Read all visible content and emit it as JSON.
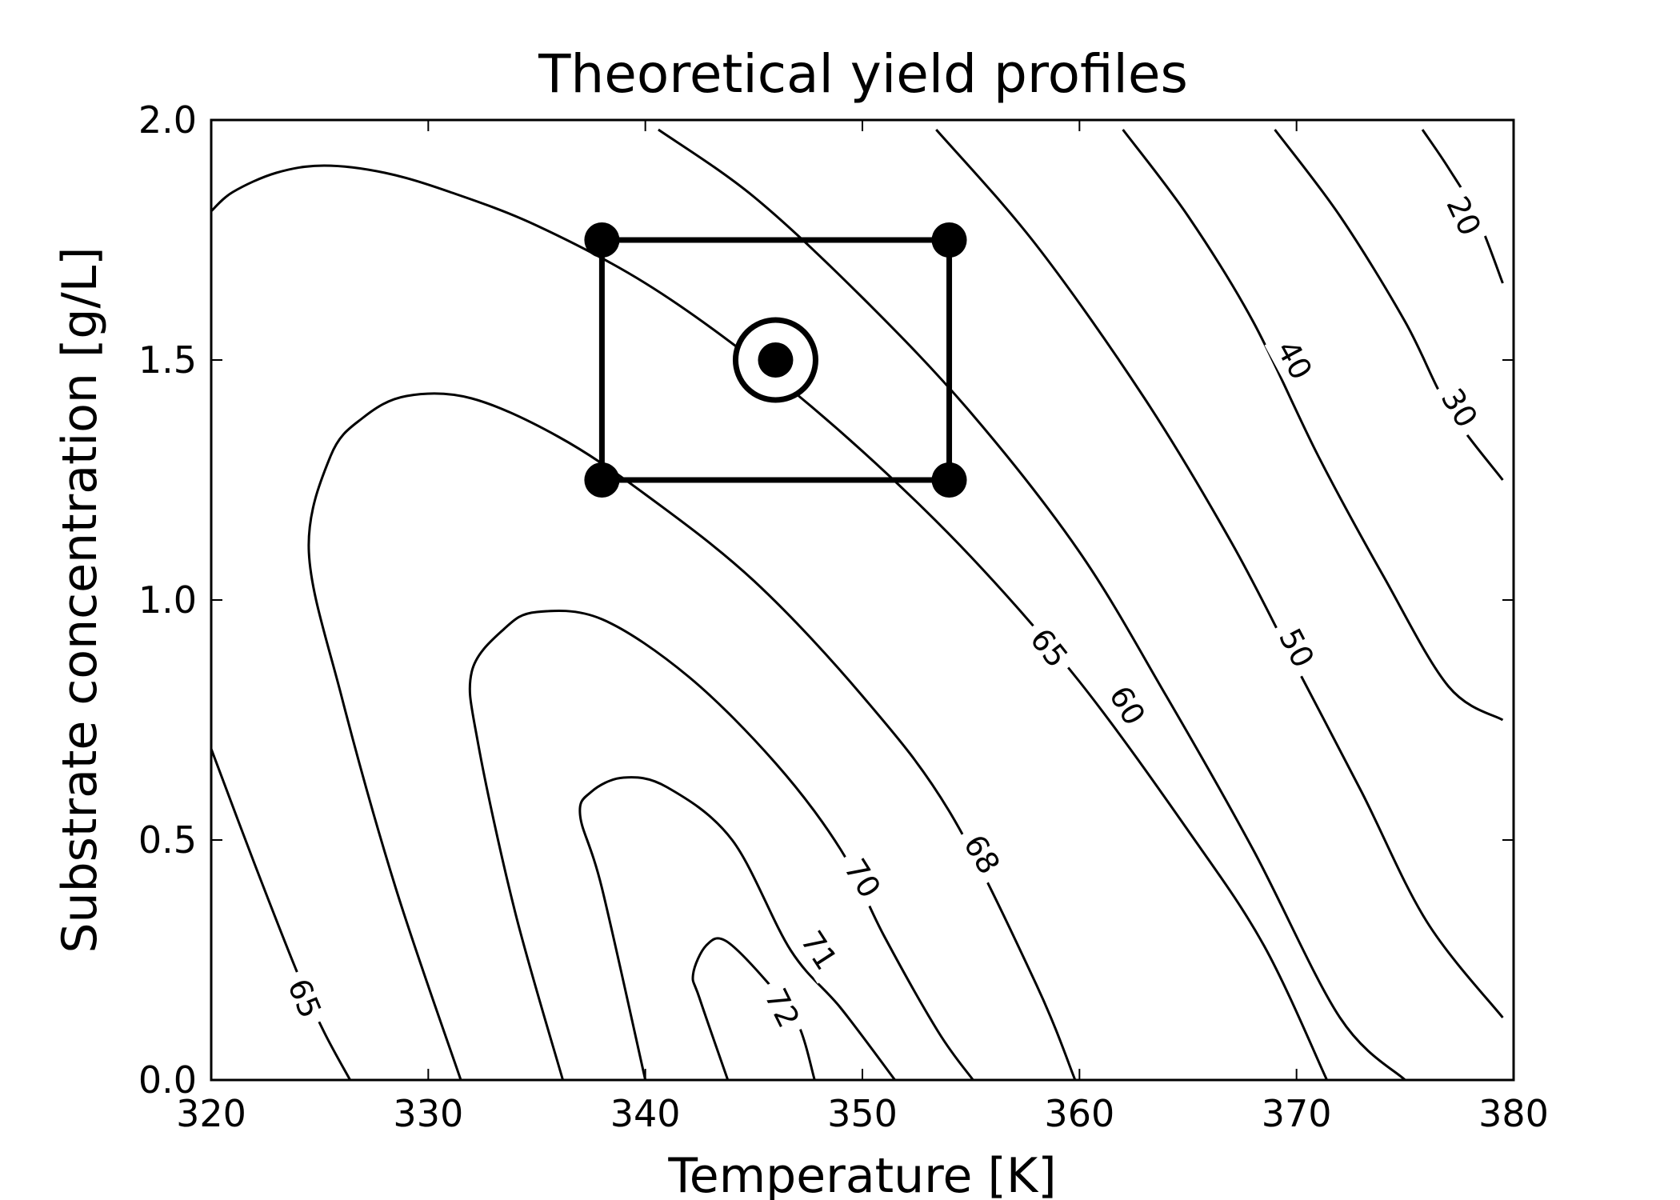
{
  "chart_data": {
    "type": "contour",
    "title": "Theoretical yield profiles",
    "xlabel": "Temperature [K]",
    "ylabel": "Substrate concentration [g/L]",
    "xlim": [
      320,
      380
    ],
    "ylim": [
      0.0,
      2.0
    ],
    "xticks": [
      "320",
      "330",
      "340",
      "350",
      "360",
      "370",
      "380"
    ],
    "yticks": [
      "0.0",
      "0.5",
      "1.0",
      "1.5",
      "2.0"
    ],
    "grid": false,
    "contour_levels": [
      {
        "level": "65",
        "points": [
          [
            320,
            1.81
          ],
          [
            321,
            1.85
          ],
          [
            323,
            1.89
          ],
          [
            325.2,
            1.905
          ],
          [
            328,
            1.89
          ],
          [
            331,
            1.85
          ],
          [
            335,
            1.78
          ],
          [
            340,
            1.66
          ],
          [
            345,
            1.5
          ],
          [
            350,
            1.31
          ],
          [
            355,
            1.09
          ],
          [
            360,
            0.83
          ],
          [
            365,
            0.52
          ],
          [
            368.5,
            0.28
          ],
          [
            371.4,
            0.0
          ]
        ],
        "label_at": [
          358.6,
          0.9
        ]
      },
      {
        "level": "65",
        "points": [
          [
            320,
            0.69
          ],
          [
            322,
            0.45
          ],
          [
            324,
            0.22
          ],
          [
            325.2,
            0.1
          ],
          [
            326.4,
            0.0
          ]
        ],
        "label_at": [
          324.3,
          0.17
        ]
      },
      {
        "level": "68",
        "points": [
          [
            331.5,
            0.0
          ],
          [
            328.5,
            0.4
          ],
          [
            326,
            0.8
          ],
          [
            324.5,
            1.1
          ],
          [
            325.5,
            1.3
          ],
          [
            327,
            1.38
          ],
          [
            329,
            1.425
          ],
          [
            332,
            1.42
          ],
          [
            336,
            1.34
          ],
          [
            340,
            1.22
          ],
          [
            345,
            1.04
          ],
          [
            350,
            0.8
          ],
          [
            354,
            0.56
          ],
          [
            358,
            0.2
          ],
          [
            359.8,
            0.0
          ]
        ],
        "label_at": [
          355.5,
          0.47
        ]
      },
      {
        "level": "70",
        "points": [
          [
            336.2,
            0.0
          ],
          [
            334,
            0.35
          ],
          [
            332.3,
            0.7
          ],
          [
            332,
            0.85
          ],
          [
            333.5,
            0.94
          ],
          [
            335,
            0.975
          ],
          [
            338,
            0.96
          ],
          [
            342,
            0.84
          ],
          [
            346,
            0.66
          ],
          [
            349,
            0.48
          ],
          [
            351,
            0.3
          ],
          [
            353.5,
            0.1
          ],
          [
            355.1,
            0.0
          ]
        ],
        "label_at": [
          350,
          0.42
        ]
      },
      {
        "level": "71",
        "points": [
          [
            340,
            0.0
          ],
          [
            338,
            0.4
          ],
          [
            337,
            0.55
          ],
          [
            337.5,
            0.6
          ],
          [
            339,
            0.63
          ],
          [
            341,
            0.61
          ],
          [
            344,
            0.5
          ],
          [
            346.7,
            0.27
          ],
          [
            349,
            0.15
          ],
          [
            351.5,
            0.0
          ]
        ],
        "label_at": [
          348,
          0.27
        ]
      },
      {
        "level": "72",
        "points": [
          [
            343.8,
            0.0
          ],
          [
            342.5,
            0.17
          ],
          [
            342.2,
            0.22
          ],
          [
            342.8,
            0.28
          ],
          [
            343.7,
            0.29
          ],
          [
            345.5,
            0.21
          ],
          [
            347,
            0.12
          ],
          [
            347.8,
            0.0
          ]
        ],
        "label_at": [
          346.3,
          0.15
        ]
      },
      {
        "level": "60",
        "points": [
          [
            340.6,
            1.98
          ],
          [
            345,
            1.84
          ],
          [
            350,
            1.63
          ],
          [
            355,
            1.39
          ],
          [
            360,
            1.1
          ],
          [
            364,
            0.8
          ],
          [
            368,
            0.48
          ],
          [
            372,
            0.13
          ],
          [
            375,
            0.0
          ]
        ],
        "label_at": [
          362.2,
          0.78
        ]
      },
      {
        "level": "50",
        "points": [
          [
            353.4,
            1.98
          ],
          [
            358,
            1.74
          ],
          [
            363,
            1.42
          ],
          [
            367,
            1.12
          ],
          [
            370,
            0.86
          ],
          [
            373,
            0.6
          ],
          [
            376,
            0.33
          ],
          [
            379.5,
            0.13
          ]
        ],
        "label_at": [
          370,
          0.9
        ]
      },
      {
        "level": "40",
        "points": [
          [
            362,
            1.98
          ],
          [
            365,
            1.8
          ],
          [
            368,
            1.58
          ],
          [
            371,
            1.3
          ],
          [
            374,
            1.05
          ],
          [
            377,
            0.82
          ],
          [
            379.5,
            0.75
          ]
        ],
        "label_at": [
          369.9,
          1.5
        ]
      },
      {
        "level": "30",
        "points": [
          [
            369,
            1.98
          ],
          [
            372,
            1.8
          ],
          [
            375,
            1.58
          ],
          [
            377,
            1.4
          ],
          [
            379.5,
            1.25
          ]
        ],
        "label_at": [
          377.5,
          1.4
        ]
      },
      {
        "level": "20",
        "points": [
          [
            375.8,
            1.98
          ],
          [
            377,
            1.9
          ],
          [
            378.3,
            1.8
          ],
          [
            379.5,
            1.66
          ]
        ],
        "label_at": [
          377.7,
          1.8
        ]
      }
    ],
    "design_points": {
      "box": [
        [
          338,
          1.25
        ],
        [
          354,
          1.75
        ]
      ],
      "corners": [
        [
          338,
          1.75
        ],
        [
          354,
          1.75
        ],
        [
          338,
          1.25
        ],
        [
          354,
          1.25
        ]
      ],
      "center": [
        346,
        1.5
      ]
    }
  }
}
